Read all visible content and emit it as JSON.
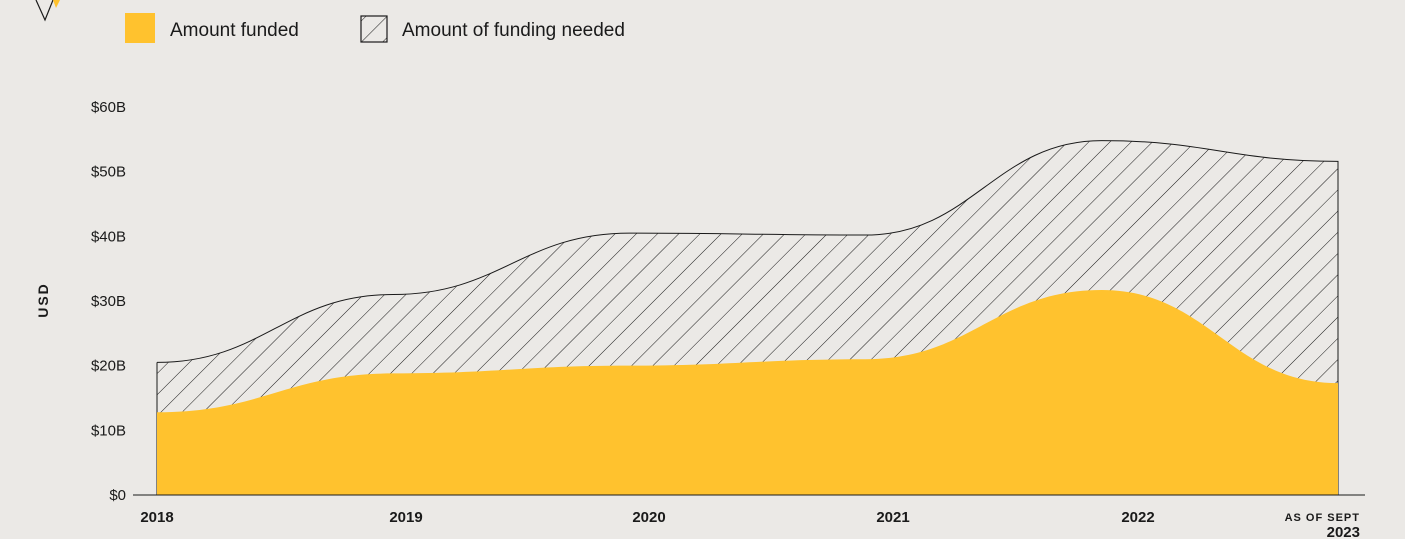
{
  "chart_data": {
    "type": "area",
    "title": "",
    "xlabel": "",
    "ylabel": "USD",
    "x": [
      "2018",
      "2019",
      "2020",
      "2021",
      "2022",
      "AS OF SEPT 2023"
    ],
    "x_tick_labels": [
      {
        "line1": "2018",
        "line2": ""
      },
      {
        "line1": "2019",
        "line2": ""
      },
      {
        "line1": "2020",
        "line2": ""
      },
      {
        "line1": "2021",
        "line2": ""
      },
      {
        "line1": "2022",
        "line2": ""
      },
      {
        "line1": "AS OF SEPT",
        "line2": "2023"
      }
    ],
    "y_ticks": [
      "$0",
      "$10B",
      "$20B",
      "$30B",
      "$40B",
      "$50B",
      "$60B"
    ],
    "ylim": [
      0,
      60
    ],
    "grid": false,
    "legend_position": "top-left",
    "series": [
      {
        "name": "Amount funded",
        "values": [
          12.8,
          18.8,
          20.0,
          21.0,
          31.7,
          17.3
        ],
        "style": "solid",
        "color": "#ffc22e"
      },
      {
        "name": "Amount of funding needed",
        "values": [
          20.5,
          31.0,
          40.5,
          40.2,
          54.8,
          51.6
        ],
        "style": "hatched",
        "color": "#1a1a1a"
      }
    ]
  },
  "colors": {
    "background": "#ebe9e6",
    "funded": "#ffc22e",
    "hatch": "#1a1a1a",
    "axis": "#1a1a1a"
  },
  "legend": {
    "funded_label": "Amount funded",
    "needed_label": "Amount of funding needed"
  }
}
